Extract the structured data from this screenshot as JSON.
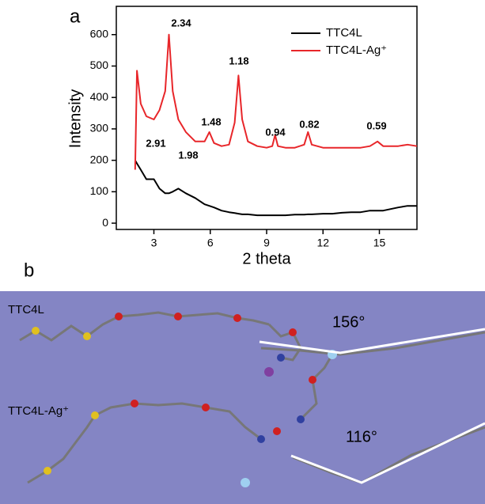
{
  "chart_data": {
    "type": "line",
    "panel_label": "a",
    "xlabel": "2 theta",
    "ylabel": "Intensity",
    "xlim": [
      1,
      17
    ],
    "ylim": [
      -20,
      690
    ],
    "xticks": [
      3,
      6,
      9,
      12,
      15
    ],
    "yticks": [
      0,
      100,
      200,
      300,
      400,
      500,
      600
    ],
    "legend": "upper right",
    "x": [
      2.0,
      2.1,
      2.3,
      2.6,
      3.0,
      3.3,
      3.6,
      3.8,
      4.0,
      4.3,
      4.7,
      5.2,
      5.7,
      5.95,
      6.2,
      6.6,
      7.0,
      7.3,
      7.5,
      7.7,
      8.0,
      8.5,
      9.0,
      9.3,
      9.45,
      9.6,
      10.0,
      10.5,
      11.0,
      11.2,
      11.4,
      12.0,
      12.5,
      13.0,
      13.5,
      14.0,
      14.5,
      14.9,
      15.2,
      15.6,
      16.0,
      16.5,
      17.0
    ],
    "series": [
      {
        "name": "TTC4L",
        "color": "#000000",
        "values": [
          200,
          190,
          170,
          140,
          140,
          110,
          95,
          95,
          100,
          110,
          95,
          80,
          60,
          55,
          50,
          40,
          35,
          32,
          30,
          28,
          28,
          25,
          25,
          25,
          25,
          25,
          25,
          27,
          27,
          28,
          28,
          30,
          30,
          33,
          35,
          35,
          40,
          40,
          40,
          45,
          50,
          55,
          55
        ]
      },
      {
        "name": "TTC4L-Ag⁺",
        "color": "#e8262a",
        "values": [
          170,
          485,
          380,
          340,
          330,
          360,
          420,
          600,
          420,
          330,
          290,
          260,
          260,
          290,
          255,
          245,
          250,
          320,
          470,
          330,
          260,
          245,
          240,
          245,
          280,
          245,
          240,
          240,
          250,
          290,
          250,
          240,
          240,
          240,
          240,
          240,
          245,
          260,
          245,
          245,
          245,
          250,
          245
        ]
      }
    ],
    "annotations": [
      "2.34",
      "1.18",
      "1.48",
      "0.94",
      "0.82",
      "0.59",
      "2.91",
      "1.98"
    ]
  },
  "panel_b": {
    "panel_label": "b",
    "top_label": "TTC4L",
    "top_angle": "156°",
    "bottom_label": "TTC4L-Ag⁺",
    "bottom_angle": "116°"
  }
}
